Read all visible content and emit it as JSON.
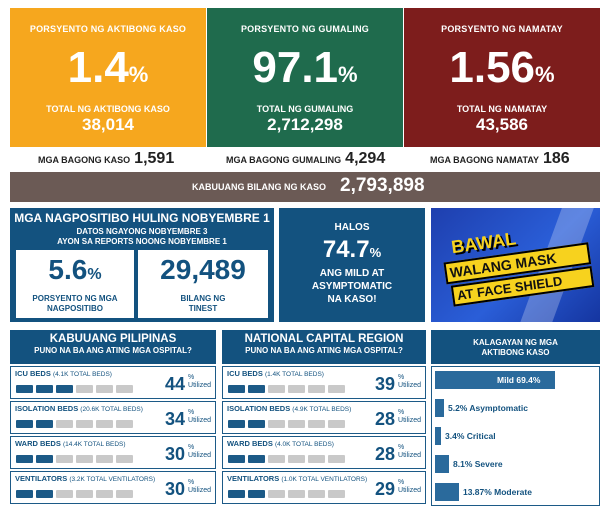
{
  "top_stats": {
    "active": {
      "label": "PORSYENTO NG AKTIBONG KASO",
      "percent": "1.4",
      "unit": "%",
      "total_label": "TOTAL NG AKTIBONG KASO",
      "total": "38,014",
      "color": "#f6a71e"
    },
    "recovered": {
      "label": "PORSYENTO NG GUMALING",
      "percent": "97.1",
      "unit": "%",
      "total_label": "TOTAL NG GUMALING",
      "total": "2,712,298",
      "color": "#1f6b4d"
    },
    "deaths": {
      "label": "PORSYENTO NG NAMATAY",
      "percent": "1.56",
      "unit": "%",
      "total_label": "TOTAL NG NAMATAY",
      "total": "43,586",
      "color": "#7d1d1c"
    }
  },
  "new_counts": {
    "cases": {
      "label": "MGA BAGONG KASO",
      "value": "1,591"
    },
    "recovered": {
      "label": "MGA BAGONG GUMALING",
      "value": "4,294"
    },
    "deaths": {
      "label": "MGA BAGONG NAMATAY",
      "value": "186"
    }
  },
  "total": {
    "label": "KABUUANG BILANG NG KASO",
    "value": "2,793,898"
  },
  "positivity": {
    "title": "MGA NAGPOSITIBO HULING NOBYEMBRE 1",
    "subtitle1": "DATOS NGAYONG NOBYEMBRE 3",
    "subtitle2": "AYON SA REPORTS NOONG NOBYEMBRE 1",
    "rate": "5.6",
    "rate_unit": "%",
    "rate_label1": "PORSYENTO NG MGA",
    "rate_label2": "NAGPOSITIBO",
    "tested": "29,489",
    "tested_label1": "BILANG NG",
    "tested_label2": "TINEST"
  },
  "mild": {
    "line1": "HALOS",
    "percent": "74.7",
    "unit": "%",
    "line2": "ANG MILD AT",
    "line3": "ASYMPTOMATIC",
    "line4": "NA KASO!"
  },
  "mask_banner": {
    "line1": "BAWAL",
    "line2": "WALANG MASK",
    "line3": "AT FACE SHIELD"
  },
  "philippines": {
    "title": "KABUUANG PILIPINAS",
    "subtitle": "PUNO NA BA ANG ATING MGA OSPITAL?",
    "rows": [
      {
        "label": "ICU BEDS",
        "sub": "(4.1K TOTAL BEDS)",
        "value": "44",
        "unit": "%",
        "suffix": "Utilized",
        "util": 0.44
      },
      {
        "label": "ISOLATION BEDS",
        "sub": "(20.6K TOTAL BEDS)",
        "value": "34",
        "unit": "%",
        "suffix": "Utilized",
        "util": 0.34
      },
      {
        "label": "WARD BEDS",
        "sub": "(14.4K TOTAL BEDS)",
        "value": "30",
        "unit": "%",
        "suffix": "Utilized",
        "util": 0.3
      },
      {
        "label": "VENTILATORS",
        "sub": "(3.2K TOTAL VENTILATORS)",
        "value": "30",
        "unit": "%",
        "suffix": "Utilized",
        "util": 0.3
      }
    ]
  },
  "ncr": {
    "title": "NATIONAL CAPITAL REGION",
    "subtitle": "PUNO NA BA ANG ATING MGA OSPITAL?",
    "rows": [
      {
        "label": "ICU BEDS",
        "sub": "(1.4K TOTAL BEDS)",
        "value": "39",
        "unit": "%",
        "suffix": "Utilized",
        "util": 0.39
      },
      {
        "label": "ISOLATION BEDS",
        "sub": "(4.9K TOTAL BEDS)",
        "value": "28",
        "unit": "%",
        "suffix": "Utilized",
        "util": 0.28
      },
      {
        "label": "WARD BEDS",
        "sub": "(4.0K TOTAL BEDS)",
        "value": "28",
        "unit": "%",
        "suffix": "Utilized",
        "util": 0.28
      },
      {
        "label": "VENTILATORS",
        "sub": "(1.0K TOTAL VENTILATORS)",
        "value": "29",
        "unit": "%",
        "suffix": "Utilized",
        "util": 0.29
      }
    ]
  },
  "severity": {
    "title1": "KALAGAYAN NG MGA",
    "title2": "AKTIBONG KASO",
    "items": [
      {
        "label": "Mild 69.4%",
        "value": 69.4
      },
      {
        "label": "5.2% Asymptomatic",
        "value": 5.2
      },
      {
        "label": "3.4% Critical",
        "value": 3.4
      },
      {
        "label": "8.1% Severe",
        "value": 8.1
      },
      {
        "label": "13.87% Moderate",
        "value": 13.87
      }
    ]
  }
}
